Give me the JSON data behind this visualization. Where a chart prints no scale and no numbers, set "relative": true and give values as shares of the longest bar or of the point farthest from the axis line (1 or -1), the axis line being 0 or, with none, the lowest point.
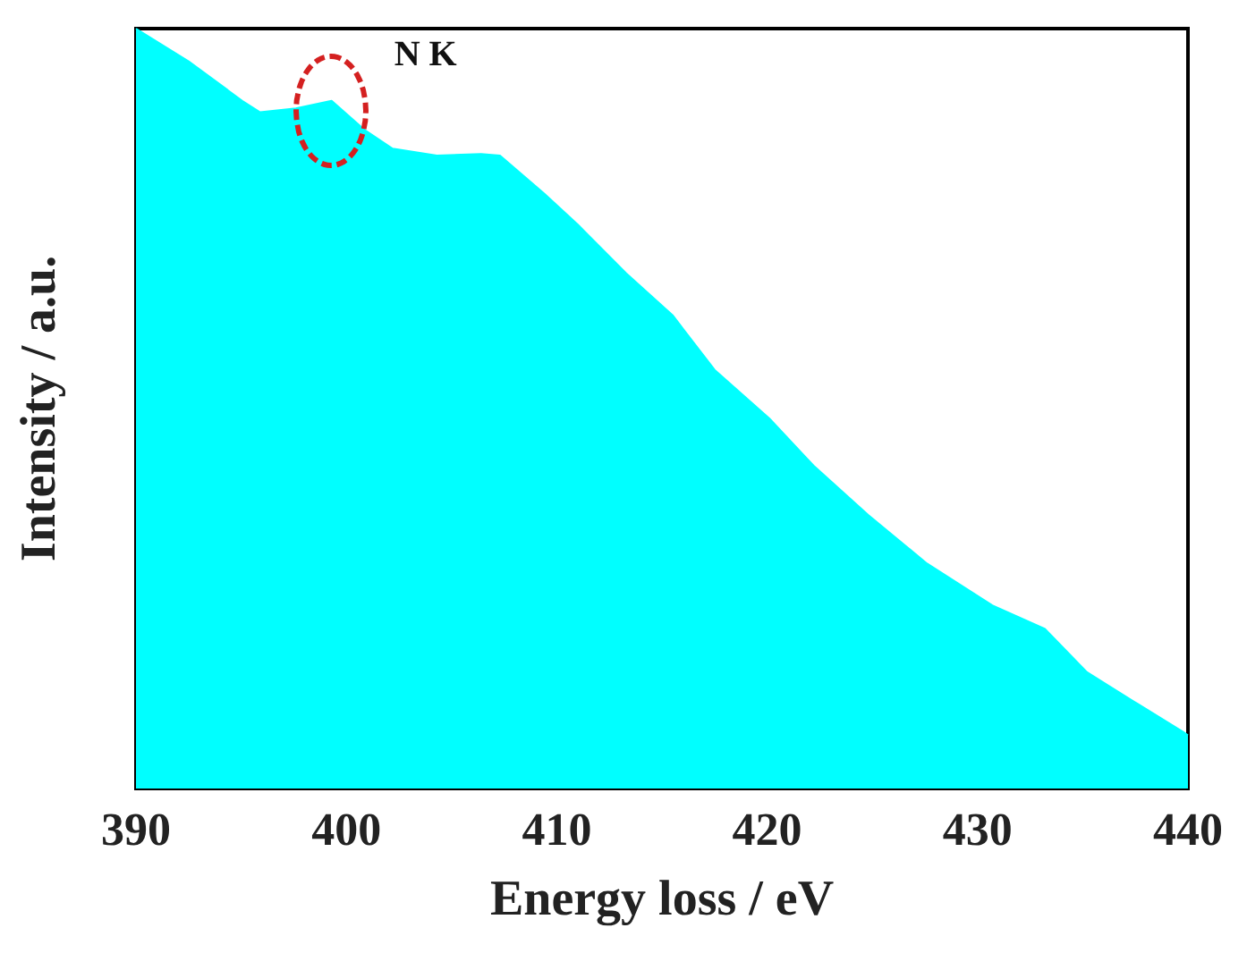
{
  "chart_data": {
    "type": "area",
    "relative": true,
    "xlabel": "Energy loss / eV",
    "ylabel": "Intensity / a.u.",
    "annotations": [
      "N K"
    ],
    "xlim": [
      390,
      440
    ],
    "xticks": [
      390,
      400,
      410,
      420,
      430,
      440
    ],
    "grid": false,
    "marker": "none",
    "series": [
      {
        "color": "#00ffff",
        "x": [
          390,
          392.5,
          395.05,
          395.9,
          397.6,
          399.3,
          400.9,
          402.2,
          404.3,
          406.4,
          407.3,
          409.4,
          411.0,
          413.3,
          415.5,
          417.5,
          420.1,
          422.2,
          424.8,
          427.6,
          430.7,
          433.2,
          435.2,
          437.4,
          439.8,
          440
        ],
        "values": [
          1.0,
          0.957,
          0.905,
          0.89,
          0.895,
          0.905,
          0.866,
          0.842,
          0.833,
          0.835,
          0.833,
          0.783,
          0.742,
          0.678,
          0.623,
          0.551,
          0.487,
          0.425,
          0.36,
          0.296,
          0.241,
          0.21,
          0.153,
          0.115,
          0.074,
          0.07
        ]
      }
    ]
  }
}
